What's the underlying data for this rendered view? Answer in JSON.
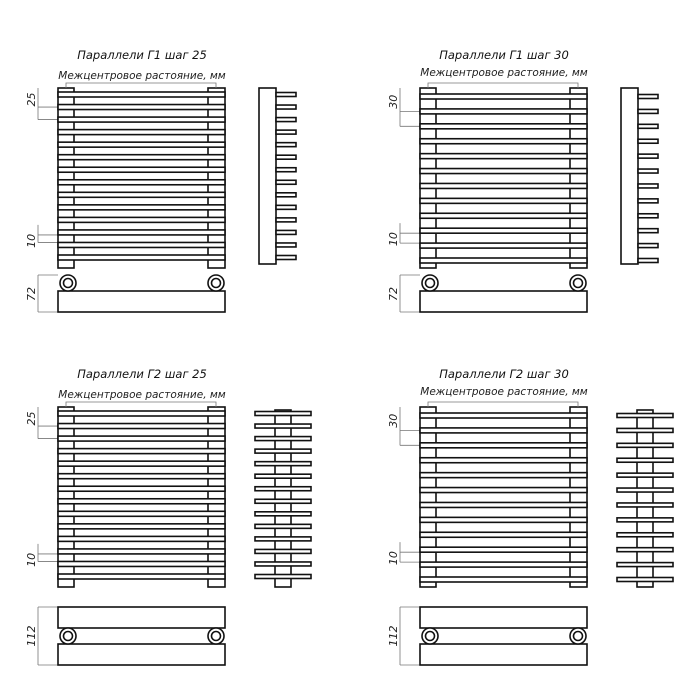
{
  "panels": [
    {
      "id": "g1-25",
      "title": "Параллели Г1 шаг 25",
      "subtitle": "Межцентровое растояние, мм",
      "pitch_label": "25",
      "gap_label": "10",
      "depth_label": "72",
      "type": "G1",
      "bar_count": 14
    },
    {
      "id": "g1-30",
      "title": "Параллели Г1 шаг 30",
      "subtitle": "Межцентровое растояние, мм",
      "pitch_label": "30",
      "gap_label": "10",
      "depth_label": "72",
      "type": "G1",
      "bar_count": 12
    },
    {
      "id": "g2-25",
      "title": "Параллели Г2 шаг 25",
      "subtitle": "Межцентровое растояние, мм",
      "pitch_label": "25",
      "gap_label": "10",
      "depth_label": "112",
      "type": "G2",
      "bar_count": 14
    },
    {
      "id": "g2-30",
      "title": "Параллели Г2 шаг 30",
      "subtitle": "Межцентровое растояние, мм",
      "pitch_label": "30",
      "gap_label": "10",
      "depth_label": "112",
      "type": "G2",
      "bar_count": 12
    }
  ],
  "colors": {
    "line": "#111111",
    "dimension": "#777777",
    "background": "#ffffff"
  }
}
